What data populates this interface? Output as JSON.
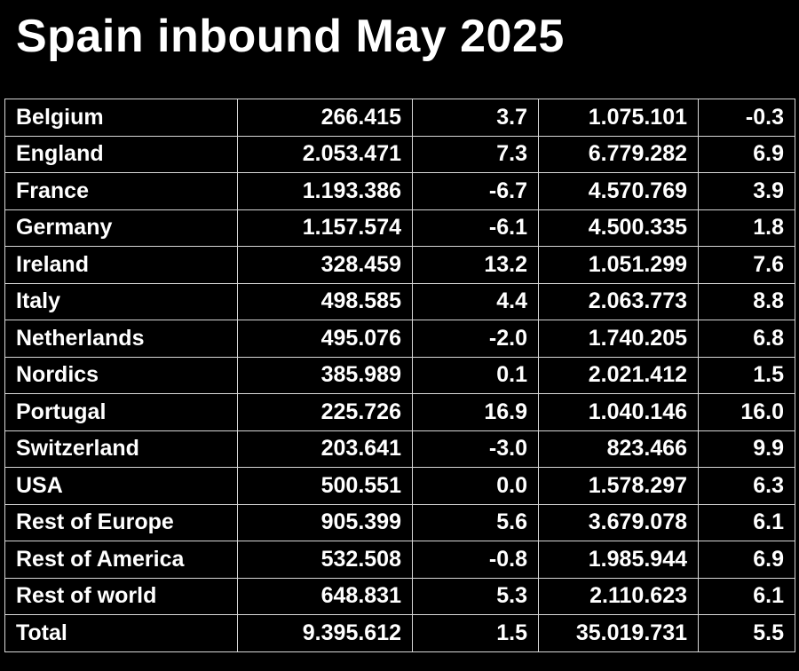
{
  "title": "Spain inbound May 2025",
  "chart_data": {
    "type": "table",
    "title": "Spain inbound May 2025",
    "rows": [
      {
        "country": "Belgium",
        "may": "266.415",
        "may_change": "3.7",
        "ytd": "1.075.101",
        "ytd_change": "-0.3"
      },
      {
        "country": "England",
        "may": "2.053.471",
        "may_change": "7.3",
        "ytd": "6.779.282",
        "ytd_change": "6.9"
      },
      {
        "country": "France",
        "may": "1.193.386",
        "may_change": "-6.7",
        "ytd": "4.570.769",
        "ytd_change": "3.9"
      },
      {
        "country": "Germany",
        "may": "1.157.574",
        "may_change": "-6.1",
        "ytd": "4.500.335",
        "ytd_change": "1.8"
      },
      {
        "country": "Ireland",
        "may": "328.459",
        "may_change": "13.2",
        "ytd": "1.051.299",
        "ytd_change": "7.6"
      },
      {
        "country": "Italy",
        "may": "498.585",
        "may_change": "4.4",
        "ytd": "2.063.773",
        "ytd_change": "8.8"
      },
      {
        "country": "Netherlands",
        "may": "495.076",
        "may_change": "-2.0",
        "ytd": "1.740.205",
        "ytd_change": "6.8"
      },
      {
        "country": "Nordics",
        "may": "385.989",
        "may_change": "0.1",
        "ytd": "2.021.412",
        "ytd_change": "1.5"
      },
      {
        "country": "Portugal",
        "may": "225.726",
        "may_change": "16.9",
        "ytd": "1.040.146",
        "ytd_change": "16.0"
      },
      {
        "country": "Switzerland",
        "may": "203.641",
        "may_change": "-3.0",
        "ytd": "823.466",
        "ytd_change": "9.9"
      },
      {
        "country": "USA",
        "may": "500.551",
        "may_change": "0.0",
        "ytd": "1.578.297",
        "ytd_change": "6.3"
      },
      {
        "country": "Rest of Europe",
        "may": "905.399",
        "may_change": "5.6",
        "ytd": "3.679.078",
        "ytd_change": "6.1"
      },
      {
        "country": "Rest of America",
        "may": "532.508",
        "may_change": "-0.8",
        "ytd": "1.985.944",
        "ytd_change": "6.9"
      },
      {
        "country": "Rest of world",
        "may": "648.831",
        "may_change": "5.3",
        "ytd": "2.110.623",
        "ytd_change": "6.1"
      },
      {
        "country": "Total",
        "may": "9.395.612",
        "may_change": "1.5",
        "ytd": "35.019.731",
        "ytd_change": "5.5"
      }
    ]
  },
  "colors": {
    "background": "#000000",
    "text": "#ffffff",
    "grid": "#d8d8d8"
  }
}
